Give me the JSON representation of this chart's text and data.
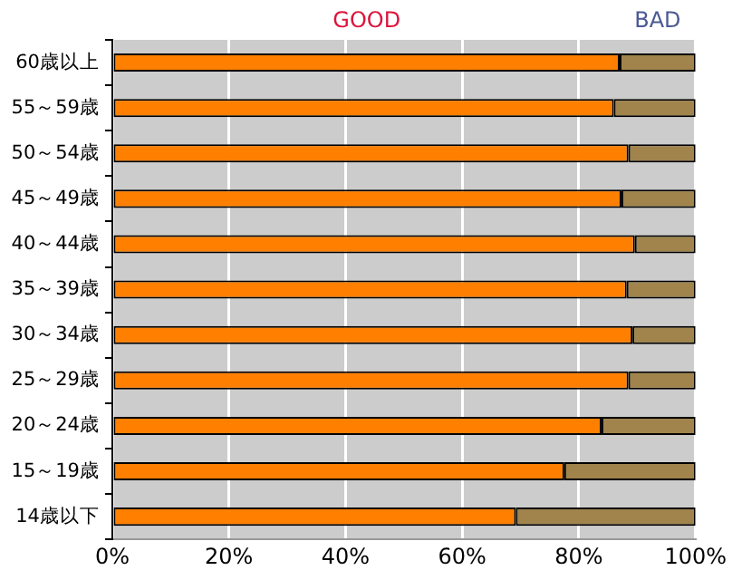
{
  "chart_data": {
    "type": "bar",
    "orientation": "horizontal",
    "stacked": true,
    "legend": "top",
    "grid": "x",
    "categories": [
      "60歳以上",
      "55～59歳",
      "50～54歳",
      "45～49歳",
      "40～44歳",
      "35～39歳",
      "30～34歳",
      "25～29歳",
      "20～24歳",
      "15～19歳",
      "14歳以下"
    ],
    "series": [
      {
        "name": "GOOD",
        "color": "#ff8000",
        "values": [
          87,
          86,
          88.5,
          87.3,
          89.6,
          88.2,
          89.2,
          88.5,
          83.9,
          77.5,
          69.2
        ]
      },
      {
        "name": "BAD",
        "color": "#a0844c",
        "values": [
          13,
          14,
          11.5,
          12.7,
          10.4,
          11.8,
          10.8,
          11.5,
          16.1,
          22.5,
          30.8
        ]
      }
    ],
    "xlim": [
      0,
      100
    ],
    "xticks": [
      {
        "value": 0,
        "label": "0%"
      },
      {
        "value": 20,
        "label": "20%"
      },
      {
        "value": 40,
        "label": "40%"
      },
      {
        "value": 60,
        "label": "60%"
      },
      {
        "value": 80,
        "label": "80%"
      },
      {
        "value": 100,
        "label": "100%"
      }
    ]
  }
}
